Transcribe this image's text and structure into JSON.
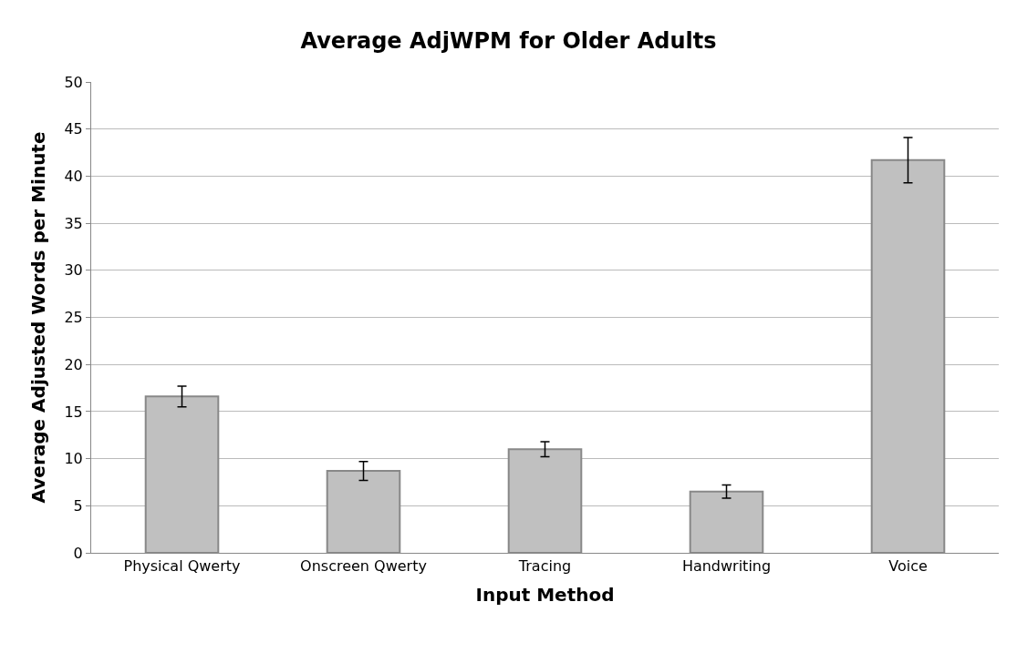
{
  "chart_data": {
    "type": "bar",
    "title": "Average AdjWPM for Older Adults",
    "xlabel": "Input Method",
    "ylabel": "Average Adjusted Words per Minute",
    "categories": [
      "Physical Qwerty",
      "Onscreen Qwerty",
      "Tracing",
      "Handwriting",
      "Voice"
    ],
    "values": [
      16.6,
      8.7,
      11.0,
      6.5,
      41.7
    ],
    "errors": [
      1.1,
      1.0,
      0.8,
      0.7,
      2.4
    ],
    "color": "#c0c0c0",
    "ylim": [
      0,
      50
    ],
    "yticks": [
      0,
      5,
      10,
      15,
      20,
      25,
      30,
      35,
      40,
      45,
      50
    ],
    "grid": "y"
  }
}
